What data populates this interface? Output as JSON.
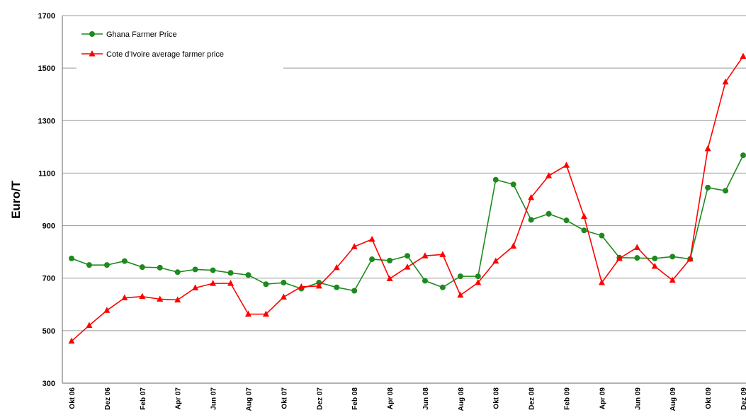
{
  "chart_data": {
    "type": "line",
    "y_label": "Euro/T",
    "categories": [
      "Okt 06",
      null,
      "Dez 06",
      null,
      "Feb 07",
      null,
      "Apr 07",
      null,
      "Jun 07",
      null,
      "Aug 07",
      null,
      "Okt 07",
      null,
      "Dez 07",
      null,
      "Feb 08",
      null,
      "Apr 08",
      null,
      "Jun 08",
      null,
      "Aug 08",
      null,
      "Okt 08",
      null,
      "Dez 08",
      null,
      "Feb 09",
      null,
      "Apr 09",
      null,
      "Jun 09",
      null,
      "Aug 09",
      null,
      "Okt 09",
      null,
      "Dez 09"
    ],
    "series": [
      {
        "name": "Ghana Farmer Price",
        "color": "#1e8a1e",
        "marker": "circle",
        "values": [
          775,
          750,
          750,
          765,
          742,
          740,
          723,
          733,
          730,
          720,
          712,
          677,
          683,
          660,
          683,
          665,
          652,
          772,
          767,
          785,
          690,
          665,
          707,
          707,
          1075,
          1057,
          922,
          945,
          920,
          882,
          862,
          778,
          777,
          775,
          782,
          773,
          1045,
          1033,
          1168
        ]
      },
      {
        "name": "Cote d'Ivoire average farmer price",
        "color": "#ff0000",
        "marker": "triangle",
        "values": [
          460,
          520,
          577,
          625,
          630,
          620,
          617,
          663,
          680,
          680,
          563,
          563,
          628,
          667,
          670,
          740,
          820,
          848,
          698,
          742,
          785,
          790,
          635,
          683,
          765,
          822,
          1007,
          1090,
          1130,
          935,
          683,
          775,
          817,
          745,
          692,
          773,
          1193,
          1447,
          1545
        ]
      }
    ],
    "ylim": [
      300,
      1700
    ],
    "yticks": [
      300,
      500,
      700,
      900,
      1100,
      1300,
      1500,
      1700
    ],
    "grid": true,
    "legend": "top-left"
  }
}
